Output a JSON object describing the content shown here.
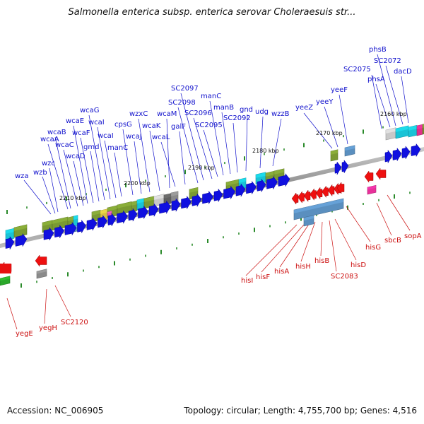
{
  "title": "Salmonella enterica subsp. enterica serovar Choleraesuis str...",
  "accession": "Accession: NC_006905",
  "summary": "Topology: circular; Length: 4,755,700 bp; Genes: 4,516",
  "scale_labels": [
    "2160 kbp",
    "2170 kbp",
    "2180 kbp",
    "2190 kbp",
    "2200 kbp",
    "2210 kbp"
  ],
  "forward_genes": [
    {
      "label": "wza"
    },
    {
      "label": "wzb"
    },
    {
      "label": "wzc"
    },
    {
      "label": "wcaA"
    },
    {
      "label": "wcaB"
    },
    {
      "label": "wcaC"
    },
    {
      "label": "wcaD"
    },
    {
      "label": "wcaE"
    },
    {
      "label": "wcaF"
    },
    {
      "label": "gmd"
    },
    {
      "label": "wcaG"
    },
    {
      "label": "wcaI"
    },
    {
      "label": "wcaI"
    },
    {
      "label": "manC"
    },
    {
      "label": "cpsG"
    },
    {
      "label": "wcaJ"
    },
    {
      "label": "wzxC"
    },
    {
      "label": "wcaK"
    },
    {
      "label": "wcaM"
    },
    {
      "label": "wcaL"
    },
    {
      "label": "galF"
    },
    {
      "label": "SC2098"
    },
    {
      "label": "SC2097"
    },
    {
      "label": "SC2096"
    },
    {
      "label": "SC2095"
    },
    {
      "label": "manC"
    },
    {
      "label": "manB"
    },
    {
      "label": "SC2092"
    },
    {
      "label": "gnd"
    },
    {
      "label": "udg"
    },
    {
      "label": "wzzB"
    },
    {
      "label": "yeeZ"
    },
    {
      "label": "yeeY"
    },
    {
      "label": "yeeF"
    },
    {
      "label": "SC2075"
    },
    {
      "label": "phsA"
    },
    {
      "label": "phsB"
    },
    {
      "label": "SC2072"
    },
    {
      "label": "dacD"
    }
  ],
  "reverse_genes": [
    {
      "label": "yegE"
    },
    {
      "label": "yegH"
    },
    {
      "label": "SC2120"
    },
    {
      "label": "hisI"
    },
    {
      "label": "hisF"
    },
    {
      "label": "hisA"
    },
    {
      "label": "hisH"
    },
    {
      "label": "hisB"
    },
    {
      "label": "SC2083"
    },
    {
      "label": "hisD"
    },
    {
      "label": "hisG"
    },
    {
      "label": "sbcB"
    },
    {
      "label": "sopA"
    }
  ],
  "colors": {
    "forward_label": "#1010cc",
    "reverse_label": "#cc1010",
    "forward_arrow": "#1010e0",
    "reverse_arrow": "#ee1010",
    "backbone": "#888888",
    "tick": "#2a8a2a"
  }
}
